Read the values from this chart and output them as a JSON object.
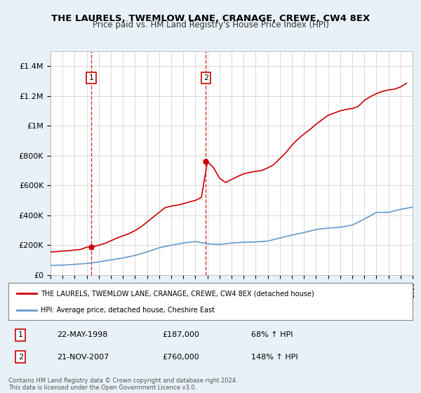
{
  "title": "THE LAURELS, TWEMLOW LANE, CRANAGE, CREWE, CW4 8EX",
  "subtitle": "Price paid vs. HM Land Registry's House Price Index (HPI)",
  "bg_color": "#e8f0f8",
  "plot_bg_color": "#ffffff",
  "grid_color": "#cccccc",
  "x_start_year": 1995,
  "x_end_year": 2025,
  "y_max": 1500000,
  "y_min": 0,
  "y_ticks": [
    0,
    200000,
    400000,
    600000,
    800000,
    1000000,
    1200000,
    1400000
  ],
  "y_tick_labels": [
    "£0",
    "£200K",
    "£400K",
    "£600K",
    "£800K",
    "£1M",
    "£1.2M",
    "£1.4M"
  ],
  "purchase_dates": [
    "1998-05-22",
    "2007-11-21"
  ],
  "purchase_prices": [
    187000,
    760000
  ],
  "purchase_labels": [
    "1",
    "2"
  ],
  "legend_line1": "THE LAURELS, TWEMLOW LANE, CRANAGE, CREWE, CW4 8EX (detached house)",
  "legend_line2": "HPI: Average price, detached house, Cheshire East",
  "table_data": [
    [
      "1",
      "22-MAY-1998",
      "£187,000",
      "68% ↑ HPI"
    ],
    [
      "2",
      "21-NOV-2007",
      "£760,000",
      "148% ↑ HPI"
    ]
  ],
  "footer": "Contains HM Land Registry data © Crown copyright and database right 2024.\nThis data is licensed under the Open Government Licence v3.0.",
  "hpi_line_color": "#6699cc",
  "price_line_color": "#cc0000",
  "vline_color": "#cc0000",
  "dot_color": "#cc0000",
  "hpi_years": [
    1995,
    1996,
    1997,
    1998,
    1999,
    2000,
    2001,
    2002,
    2003,
    2004,
    2005,
    2006,
    2007,
    2008,
    2009,
    2010,
    2011,
    2012,
    2013,
    2014,
    2015,
    2016,
    2017,
    2018,
    2019,
    2020,
    2021,
    2022,
    2023,
    2024,
    2025
  ],
  "hpi_values": [
    65000,
    67000,
    72000,
    78000,
    88000,
    102000,
    115000,
    132000,
    155000,
    183000,
    200000,
    215000,
    225000,
    210000,
    205000,
    215000,
    220000,
    222000,
    228000,
    248000,
    268000,
    285000,
    305000,
    315000,
    320000,
    335000,
    375000,
    420000,
    420000,
    440000,
    455000
  ],
  "price_years": [
    1995.0,
    1995.5,
    1996.0,
    1996.5,
    1997.0,
    1997.5,
    1998.0,
    1998.5,
    1999.0,
    1999.5,
    2000.0,
    2000.5,
    2001.0,
    2001.5,
    2002.0,
    2002.5,
    2003.0,
    2003.5,
    2004.0,
    2004.5,
    2005.0,
    2005.5,
    2006.0,
    2006.5,
    2007.0,
    2007.5,
    2008.0,
    2008.5,
    2009.0,
    2009.5,
    2010.0,
    2010.5,
    2011.0,
    2011.5,
    2012.0,
    2012.5,
    2013.0,
    2013.5,
    2014.0,
    2014.5,
    2015.0,
    2015.5,
    2016.0,
    2016.5,
    2017.0,
    2017.5,
    2018.0,
    2018.5,
    2019.0,
    2019.5,
    2020.0,
    2020.5,
    2021.0,
    2021.5,
    2022.0,
    2022.5,
    2023.0,
    2023.5,
    2024.0,
    2024.5
  ],
  "price_values": [
    155000,
    157000,
    161000,
    163000,
    168000,
    172000,
    187000,
    190000,
    200000,
    212000,
    230000,
    248000,
    263000,
    278000,
    298000,
    323000,
    355000,
    388000,
    420000,
    452000,
    462000,
    468000,
    478000,
    490000,
    500000,
    520000,
    760000,
    720000,
    650000,
    620000,
    640000,
    660000,
    678000,
    688000,
    695000,
    700000,
    718000,
    740000,
    780000,
    820000,
    870000,
    910000,
    945000,
    975000,
    1010000,
    1040000,
    1070000,
    1085000,
    1100000,
    1110000,
    1115000,
    1130000,
    1170000,
    1195000,
    1215000,
    1230000,
    1240000,
    1245000,
    1260000,
    1285000
  ]
}
